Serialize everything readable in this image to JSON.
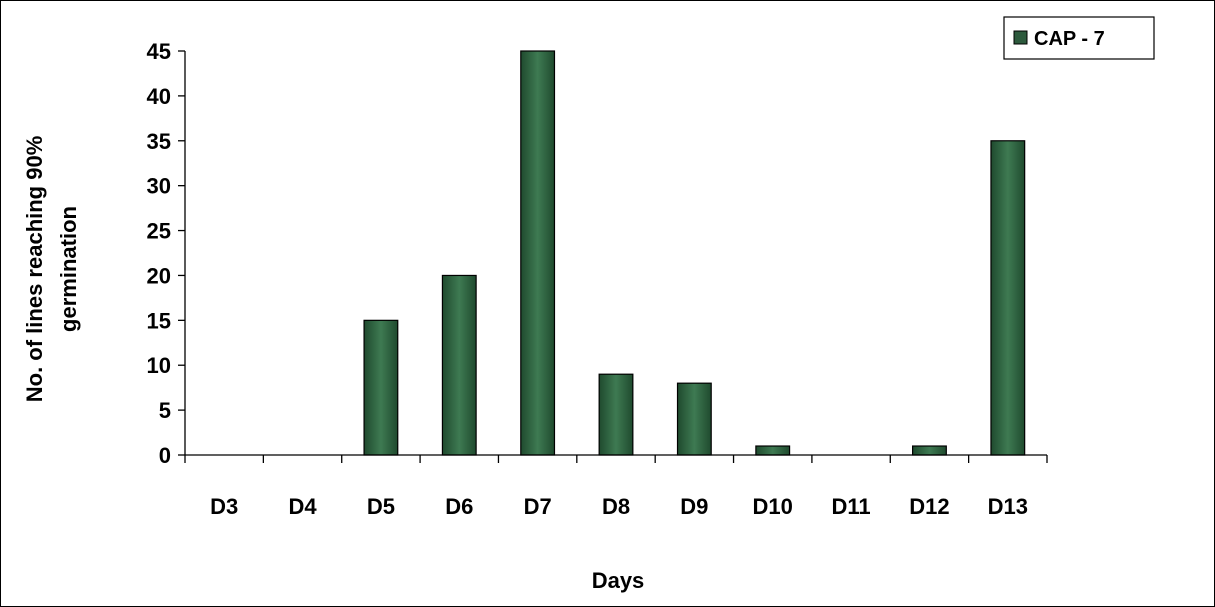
{
  "chart_data": {
    "type": "bar",
    "categories": [
      "D3",
      "D4",
      "D5",
      "D6",
      "D7",
      "D8",
      "D9",
      "D10",
      "D11",
      "D12",
      "D13"
    ],
    "series": [
      {
        "name": "CAP - 7",
        "values": [
          0,
          0,
          15,
          20,
          45,
          9,
          8,
          1,
          0,
          1,
          35
        ],
        "color": "#2d5a3d"
      }
    ],
    "title": "",
    "xlabel": "Days",
    "ylabel": "No. of lines reaching 90% germination",
    "ylabel_lines": [
      "No. of lines reaching 90%",
      "germination"
    ],
    "ylim": [
      0,
      45
    ],
    "yticks": [
      0,
      5,
      10,
      15,
      20,
      25,
      30,
      35,
      40,
      45
    ],
    "grid": false,
    "legend_position": "top-right"
  }
}
